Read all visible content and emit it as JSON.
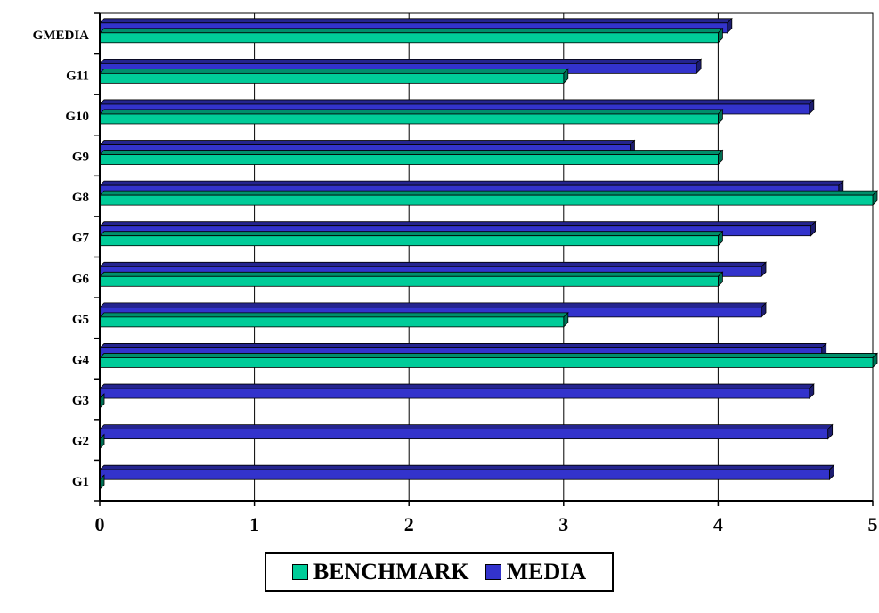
{
  "chart_data": {
    "type": "bar",
    "orientation": "horizontal",
    "categories": [
      "G1",
      "G2",
      "G3",
      "G4",
      "G5",
      "G6",
      "G7",
      "G8",
      "G9",
      "G10",
      "G11",
      "GMEDIA"
    ],
    "series": [
      {
        "name": "BENCHMARK",
        "color": "#00CC99",
        "values": [
          0,
          0,
          0,
          5,
          3,
          4,
          4,
          5,
          4,
          4,
          3,
          4
        ]
      },
      {
        "name": "MEDIA",
        "color": "#3333CC",
        "values": [
          4.72,
          4.71,
          4.59,
          4.67,
          4.28,
          4.28,
          4.6,
          4.78,
          3.43,
          4.59,
          3.86,
          4.06
        ]
      }
    ],
    "x_ticks": [
      "0",
      "1",
      "2",
      "3",
      "4",
      "5"
    ],
    "xlim": [
      0,
      5
    ],
    "grid": "vertical",
    "legend": "bottom-center"
  }
}
